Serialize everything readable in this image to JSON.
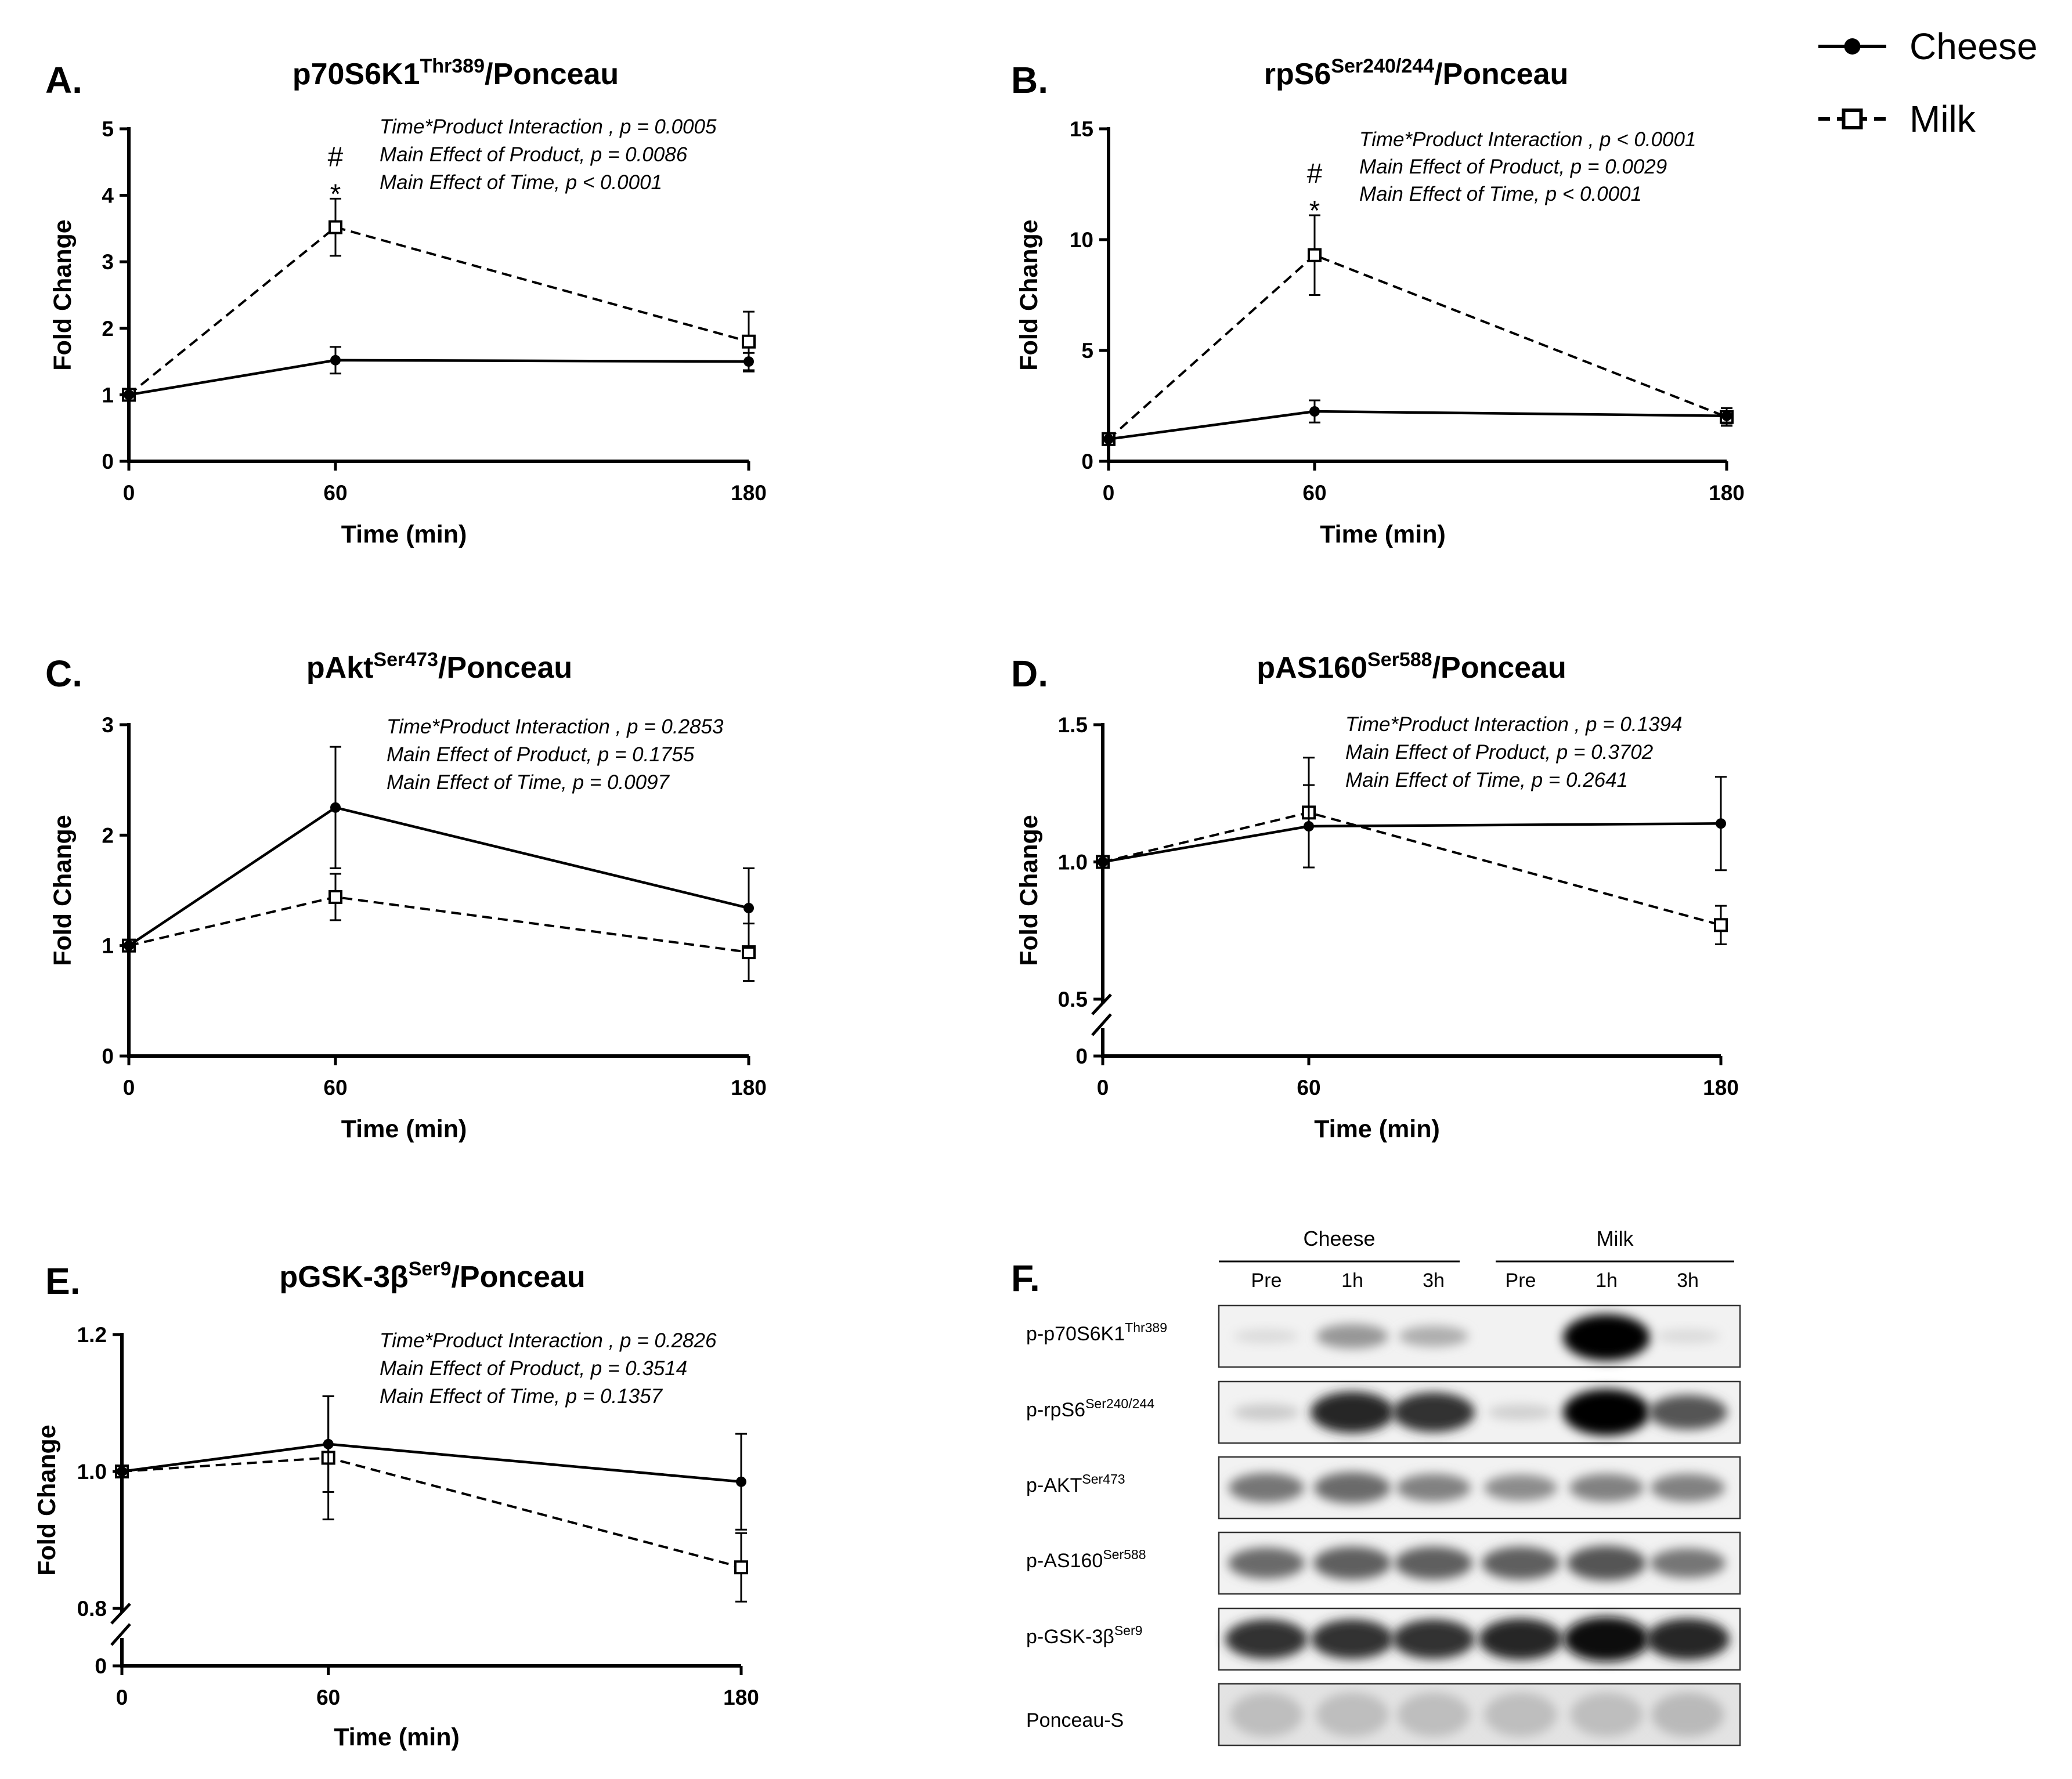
{
  "legend": {
    "items": [
      {
        "name": "Cheese",
        "style": "solid-filled-circle"
      },
      {
        "name": "Milk",
        "style": "dashed-open-square"
      }
    ]
  },
  "chart_data": [
    {
      "panel": "A.",
      "type": "line",
      "title_main": "p70S6K1",
      "title_sup": "Thr389",
      "title_tail": "/Ponceau",
      "xlabel": "Time (min)",
      "ylabel": "Fold Change",
      "x": [
        0,
        60,
        180
      ],
      "x_tick_labels": [
        "0",
        "60",
        "180"
      ],
      "ylim": [
        0,
        5
      ],
      "y_ticks": [
        0,
        1,
        2,
        3,
        4,
        5
      ],
      "y_tick_labels": [
        "0",
        "1",
        "2",
        "3",
        "4",
        "5"
      ],
      "axis_break": false,
      "stats": [
        "Time*Product Interaction , p = 0.0005",
        "Main Effect of Product, p = 0.0086",
        "Main Effect of Time, p < 0.0001"
      ],
      "significance": [
        {
          "x": 60,
          "marks": [
            "#",
            "*"
          ]
        }
      ],
      "series": [
        {
          "name": "Cheese",
          "values": [
            1.0,
            1.52,
            1.5
          ],
          "errors": [
            0.0,
            0.2,
            0.13
          ]
        },
        {
          "name": "Milk",
          "values": [
            1.0,
            3.52,
            1.8
          ],
          "errors": [
            0.0,
            0.43,
            0.45
          ]
        }
      ]
    },
    {
      "panel": "B.",
      "type": "line",
      "title_main": "rpS6",
      "title_sup": "Ser240/244",
      "title_tail": "/Ponceau",
      "xlabel": "Time (min)",
      "ylabel": "Fold Change",
      "x": [
        0,
        60,
        180
      ],
      "x_tick_labels": [
        "0",
        "60",
        "180"
      ],
      "ylim": [
        0,
        15
      ],
      "y_ticks": [
        0,
        5,
        10,
        15
      ],
      "y_tick_labels": [
        "0",
        "5",
        "10",
        "15"
      ],
      "axis_break": false,
      "stats": [
        "Time*Product Interaction , p < 0.0001",
        "Main Effect of Product, p = 0.0029",
        "Main Effect of Time, p < 0.0001"
      ],
      "significance": [
        {
          "x": 60,
          "marks": [
            "#",
            "*"
          ]
        }
      ],
      "series": [
        {
          "name": "Cheese",
          "values": [
            1.0,
            2.25,
            2.05
          ],
          "errors": [
            0.0,
            0.5,
            0.35
          ]
        },
        {
          "name": "Milk",
          "values": [
            1.0,
            9.3,
            2.0
          ],
          "errors": [
            0.0,
            1.8,
            0.4
          ]
        }
      ]
    },
    {
      "panel": "C.",
      "type": "line",
      "title_main": "pAkt",
      "title_sup": "Ser473",
      "title_tail": "/Ponceau",
      "xlabel": "Time (min)",
      "ylabel": "Fold Change",
      "x": [
        0,
        60,
        180
      ],
      "x_tick_labels": [
        "0",
        "60",
        "180"
      ],
      "ylim": [
        0,
        3
      ],
      "y_ticks": [
        0,
        1,
        2,
        3
      ],
      "y_tick_labels": [
        "0",
        "1",
        "2",
        "3"
      ],
      "axis_break": false,
      "stats": [
        "Time*Product Interaction , p = 0.2853",
        "Main Effect of Product, p = 0.1755",
        "Main Effect of Time, p = 0.0097"
      ],
      "significance": [],
      "series": [
        {
          "name": "Cheese",
          "values": [
            1.0,
            2.25,
            1.34
          ],
          "errors": [
            0.0,
            0.55,
            0.36
          ]
        },
        {
          "name": "Milk",
          "values": [
            1.0,
            1.44,
            0.94
          ],
          "errors": [
            0.0,
            0.21,
            0.26
          ]
        }
      ]
    },
    {
      "panel": "D.",
      "type": "line",
      "title_main": "pAS160",
      "title_sup": "Ser588",
      "title_tail": "/Ponceau",
      "xlabel": "Time (min)",
      "ylabel": "Fold Change",
      "x": [
        0,
        60,
        180
      ],
      "x_tick_labels": [
        "0",
        "60",
        "180"
      ],
      "ylim": [
        0.5,
        1.5
      ],
      "y_ticks": [
        0.5,
        1.0,
        1.5
      ],
      "y_tick_labels": [
        "0.5",
        "1.0",
        "1.5"
      ],
      "axis_break": true,
      "break_zero_label": "0",
      "stats": [
        "Time*Product Interaction , p = 0.1394",
        "Main Effect of Product, p = 0.3702",
        "Main Effect of Time, p = 0.2641"
      ],
      "significance": [],
      "series": [
        {
          "name": "Cheese",
          "values": [
            1.0,
            1.13,
            1.14
          ],
          "errors": [
            0.0,
            0.15,
            0.17
          ]
        },
        {
          "name": "Milk",
          "values": [
            1.0,
            1.18,
            0.77
          ],
          "errors": [
            0.0,
            0.2,
            0.07
          ]
        }
      ]
    },
    {
      "panel": "E.",
      "type": "line",
      "title_main": "pGSK-3β",
      "title_sup": "Ser9",
      "title_tail": "/Ponceau",
      "xlabel": "Time (min)",
      "ylabel": "Fold Change",
      "x": [
        0,
        60,
        180
      ],
      "x_tick_labels": [
        "0",
        "60",
        "180"
      ],
      "ylim": [
        0.8,
        1.2
      ],
      "y_ticks": [
        0.8,
        1.0,
        1.2
      ],
      "y_tick_labels": [
        "0.8",
        "1.0",
        "1.2"
      ],
      "axis_break": true,
      "break_zero_label": "0",
      "stats": [
        "Time*Product Interaction , p = 0.2826",
        "Main Effect of Product, p = 0.3514",
        "Main Effect of Time, p = 0.1357"
      ],
      "significance": [],
      "series": [
        {
          "name": "Cheese",
          "values": [
            1.0,
            1.04,
            0.985
          ],
          "errors": [
            0.0,
            0.07,
            0.07
          ]
        },
        {
          "name": "Milk",
          "values": [
            1.0,
            1.02,
            0.86
          ],
          "errors": [
            0.0,
            0.09,
            0.05
          ]
        }
      ]
    }
  ],
  "blot": {
    "panel": "F.",
    "groups": [
      {
        "name": "Cheese",
        "lanes": [
          "Pre",
          "1h",
          "3h"
        ]
      },
      {
        "name": "Milk",
        "lanes": [
          "Pre",
          "1h",
          "3h"
        ]
      }
    ],
    "rows": [
      {
        "label_main": "p-p70S6K1",
        "label_sup": "Thr389",
        "intensities": [
          0.05,
          0.35,
          0.25,
          0.0,
          1.0,
          0.05
        ]
      },
      {
        "label_main": "p-rpS6",
        "label_sup": "Ser240/244",
        "intensities": [
          0.12,
          0.85,
          0.8,
          0.1,
          1.0,
          0.65
        ]
      },
      {
        "label_main": "p-AKT",
        "label_sup": "Ser473",
        "intensities": [
          0.5,
          0.55,
          0.45,
          0.4,
          0.45,
          0.45
        ]
      },
      {
        "label_main": "p-AS160",
        "label_sup": "Ser588",
        "intensities": [
          0.55,
          0.6,
          0.6,
          0.6,
          0.65,
          0.5
        ]
      },
      {
        "label_main": "p-GSK-3β",
        "label_sup": "Ser9",
        "intensities": [
          0.8,
          0.8,
          0.8,
          0.85,
          0.95,
          0.85
        ]
      },
      {
        "label_main": "Ponceau-S",
        "label_sup": "",
        "intensities": [
          0.18,
          0.18,
          0.18,
          0.18,
          0.18,
          0.2
        ]
      }
    ]
  }
}
